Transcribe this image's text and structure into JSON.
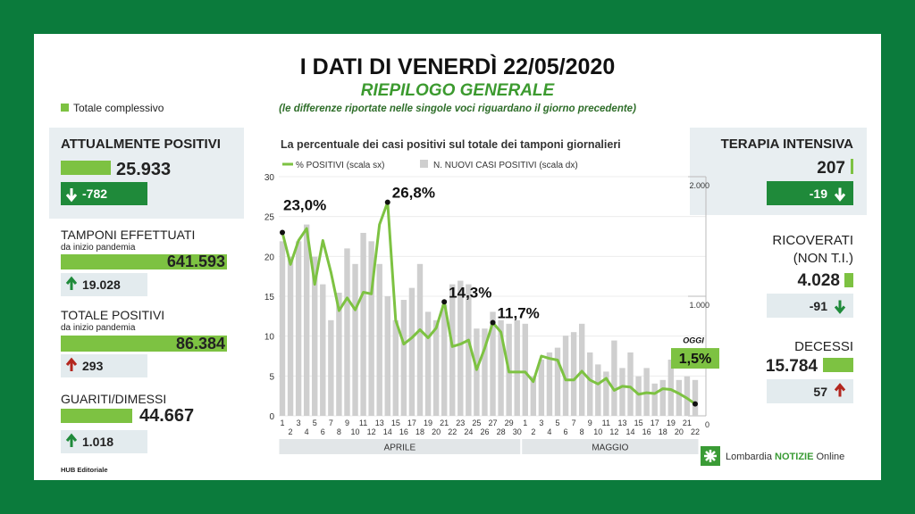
{
  "header": {
    "title": "I DATI DI VENERDÌ 22/05/2020",
    "subtitle": "RIEPILOGO GENERALE",
    "note": "(le differenze riportate nelle singole voci riguardano il giorno precedente)",
    "legend": "Totale complessivo"
  },
  "left_stats": [
    {
      "label": "ATTUALMENTE POSITIVI",
      "total": "25.933",
      "change": "-782",
      "arrow": "down",
      "arrow_color": "#1f8a3a",
      "box": "filled"
    },
    {
      "label": "TAMPONI EFFETTUATI",
      "sublabel": "da inizio pandemia",
      "total": "641.593",
      "change": "19.028",
      "arrow": "up",
      "arrow_color": "#1f8a3a",
      "box": "light"
    },
    {
      "label": "TOTALE POSITIVI",
      "sublabel": "da inizio pandemia",
      "total": "86.384",
      "change": "293",
      "arrow": "up",
      "arrow_color": "#b3261e",
      "box": "light"
    },
    {
      "label": "GUARITI/DIMESSI",
      "total": "44.667",
      "change": "1.018",
      "arrow": "up",
      "arrow_color": "#1f8a3a",
      "box": "light"
    }
  ],
  "right_stats": [
    {
      "label": "TERAPIA INTENSIVA",
      "total": "207",
      "change": "-19",
      "arrow": "down",
      "arrow_color": "#1f8a3a",
      "box": "filled"
    },
    {
      "label": "RICOVERATI",
      "sublabel": "(NON T.I.)",
      "total": "4.028",
      "change": "-91",
      "arrow": "down",
      "arrow_color": "#1f8a3a",
      "box": "light"
    },
    {
      "label": "DECESSI",
      "total": "15.784",
      "change": "57",
      "arrow": "up",
      "arrow_color": "#b3261e",
      "box": "light"
    }
  ],
  "chart_data": {
    "type": "combo",
    "title": "La percentuale dei casi positivi sul totale dei tamponi giornalieri",
    "categories": [
      "1",
      "2",
      "3",
      "4",
      "5",
      "6",
      "7",
      "8",
      "9",
      "10",
      "11",
      "12",
      "13",
      "14",
      "15",
      "16",
      "17",
      "18",
      "19",
      "20",
      "21",
      "22",
      "23",
      "24",
      "25",
      "26",
      "27",
      "28",
      "29",
      "30",
      "1",
      "2",
      "3",
      "4",
      "5",
      "6",
      "7",
      "8",
      "9",
      "10",
      "11",
      "12",
      "13",
      "14",
      "15",
      "16",
      "17",
      "18",
      "19",
      "20",
      "21",
      "22"
    ],
    "months": [
      "APRILE",
      "MAGGIO"
    ],
    "series": [
      {
        "name": "N. NUOVI CASI POSITIVI (scala dx)",
        "type": "bar",
        "axis": "y2",
        "color": "#cfcfcf",
        "values": [
          1460,
          1330,
          1460,
          1600,
          1330,
          1100,
          800,
          1030,
          1400,
          1270,
          1530,
          1460,
          1270,
          1000,
          800,
          970,
          1070,
          1270,
          870,
          800,
          930,
          1100,
          1130,
          1100,
          730,
          730,
          870,
          800,
          770,
          800,
          770,
          330,
          470,
          530,
          570,
          670,
          700,
          770,
          530,
          430,
          370,
          630,
          400,
          530,
          330,
          400,
          270,
          300,
          470,
          300,
          330,
          300
        ]
      },
      {
        "name": "% POSITIVI (scala sx)",
        "type": "line",
        "color": "#7dc242",
        "values": [
          23,
          19,
          22,
          23.5,
          16.5,
          22,
          18,
          13.2,
          14.8,
          13.3,
          15.5,
          15.3,
          24,
          26.8,
          12,
          9,
          9.8,
          10.8,
          9.8,
          11,
          14.3,
          8.7,
          9,
          9.5,
          5.8,
          8.5,
          11.7,
          10.5,
          5.5,
          5.5,
          5.5,
          4.3,
          7.5,
          7.2,
          7,
          4.5,
          4.5,
          5.6,
          4.5,
          4,
          4.7,
          3.2,
          3.7,
          3.6,
          2.7,
          2.9,
          2.8,
          3.4,
          3.3,
          2.8,
          2.2,
          1.5
        ],
        "value_labels": [
          "23,0%",
          null,
          null,
          null,
          null,
          null,
          null,
          null,
          null,
          null,
          null,
          null,
          null,
          "26,8%",
          null,
          null,
          null,
          null,
          null,
          null,
          "14,3%",
          null,
          null,
          null,
          null,
          null,
          "11,7%",
          null,
          null,
          null,
          null,
          null,
          null,
          null,
          null,
          null,
          null,
          null,
          null,
          null,
          null,
          null,
          null,
          null,
          null,
          null,
          null,
          null,
          null,
          null,
          null,
          "1,5%"
        ]
      }
    ],
    "today_label": "OGGI",
    "ylim": [
      0,
      30
    ],
    "yticks": [
      0,
      5,
      10,
      15,
      20,
      25,
      30
    ],
    "y2lim": [
      0,
      2000
    ],
    "y2ticks": [
      0,
      {
        "value": 1000,
        "label": "1.000"
      },
      {
        "value": 2000,
        "label": "2.000"
      }
    ],
    "grid": true
  },
  "footer": {
    "credit": "HUB Editoriale",
    "brand": "Lombardia",
    "brand_bold": "NOTIZIE",
    "brand_suffix": "Online"
  }
}
